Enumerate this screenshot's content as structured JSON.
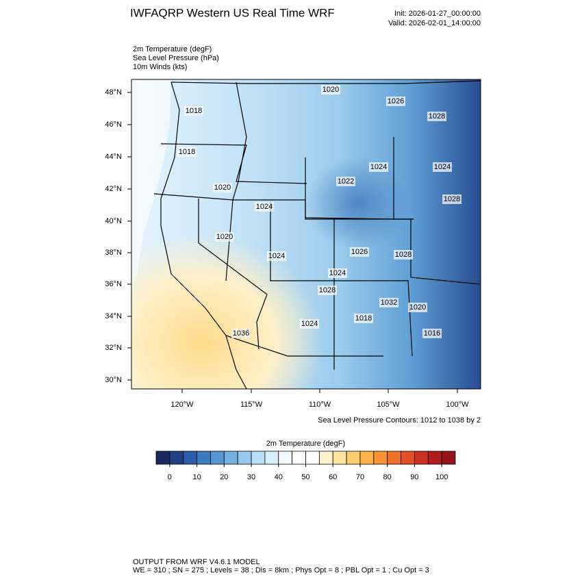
{
  "header": {
    "title": "IWFAQRP Western US Real Time WRF",
    "init": "Init: 2026-01-27_00:00:00",
    "valid": "Valid: 2026-02-01_14:00:00"
  },
  "fields": [
    "2m Temperature   (degF)",
    "Sea Level Pressure   (hPa)",
    "10m Winds   (kts)"
  ],
  "map": {
    "lat_labels": [
      "48°N",
      "46°N",
      "44°N",
      "42°N",
      "40°N",
      "38°N",
      "36°N",
      "34°N",
      "32°N",
      "30°N"
    ],
    "lon_labels": [
      "120°W",
      "115°W",
      "110°W",
      "105°W",
      "100°W"
    ],
    "contour_labels": [
      "1020",
      "1026",
      "1018",
      "1028",
      "1018",
      "1024",
      "1020",
      "1024",
      "1022",
      "1028",
      "1024",
      "1020",
      "1026",
      "1024",
      "1028",
      "1024",
      "1028",
      "1032",
      "1020",
      "1024",
      "1018",
      "1036",
      "1016"
    ],
    "contour_note": "Sea Level Pressure Contours: 1012 to 1038 by 2"
  },
  "colorbar": {
    "title": "2m Temperature  (degF)",
    "colors": [
      "#1a2a5e",
      "#213f84",
      "#2a5ea6",
      "#3b7cc0",
      "#5596d0",
      "#73b0df",
      "#97c9ec",
      "#badef6",
      "#d8eefa",
      "#f2f9fd",
      "#ffffff",
      "#ffffff",
      "#fff3cf",
      "#ffe39f",
      "#fecd72",
      "#fdb24a",
      "#f99433",
      "#ef7228",
      "#e05226",
      "#cb3225",
      "#b01b20",
      "#941519"
    ],
    "ticks": [
      0,
      10,
      20,
      30,
      40,
      50,
      60,
      70,
      80,
      90,
      100
    ]
  },
  "footer": {
    "line1": "OUTPUT FROM WRF V4.6.1 MODEL",
    "line2": "WE = 310 ; SN = 275 ; Levels = 38 ; Dis = 8km ; Phys Opt = 8 ; PBL Opt = 1 ; Cu Opt = 3"
  }
}
